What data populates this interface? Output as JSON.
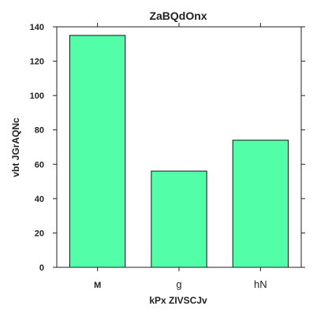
{
  "chart_data": {
    "type": "bar",
    "title": "ZaBQdOnx",
    "xlabel": "kPx ZIVSCJv",
    "ylabel": "vbt JGrAQNc",
    "categories": [
      "M",
      "g",
      "hN"
    ],
    "values": [
      135,
      56,
      74
    ],
    "ylim": [
      0,
      140
    ],
    "yticks": [
      0,
      20,
      40,
      60,
      80,
      100,
      120,
      140
    ],
    "bar_color": "#52ffa8",
    "grid": false
  }
}
